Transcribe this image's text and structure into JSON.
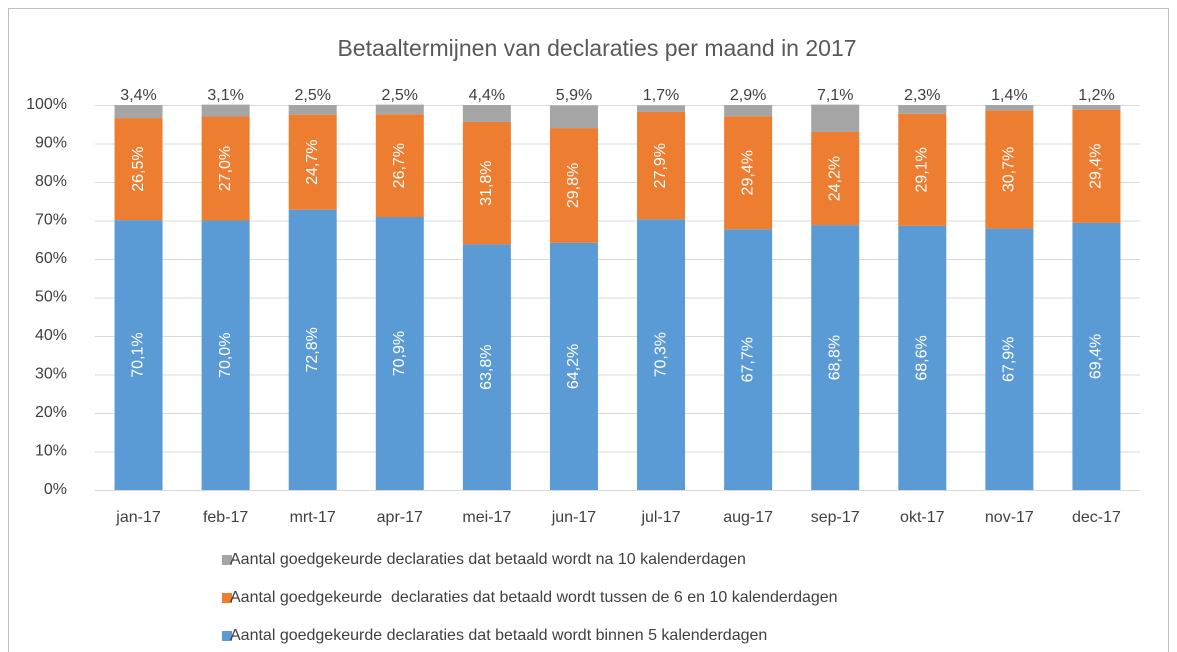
{
  "chart_data": {
    "type": "stacked_bar",
    "title": "Betaaltermijnen van declaraties per maand in 2017",
    "categories": [
      "jan-17",
      "feb-17",
      "mrt-17",
      "apr-17",
      "mei-17",
      "jun-17",
      "jul-17",
      "aug-17",
      "sep-17",
      "okt-17",
      "nov-17",
      "dec-17"
    ],
    "series": [
      {
        "name": "Aantal goedgekeurde declaraties dat betaald wordt binnen 5 kalenderdagen",
        "color": "#5b9bd5",
        "values": [
          70.1,
          70.0,
          72.8,
          70.9,
          63.8,
          64.2,
          70.3,
          67.7,
          68.8,
          68.6,
          67.9,
          69.4
        ],
        "value_labels": [
          "70,1%",
          "70,0%",
          "72,8%",
          "70,9%",
          "63,8%",
          "64,2%",
          "70,3%",
          "67,7%",
          "68,8%",
          "68,6%",
          "67,9%",
          "69,4%"
        ]
      },
      {
        "name": "Aantal goedgekeurde  declaraties dat betaald wordt tussen de 6 en 10 kalenderdagen",
        "color": "#ed7d31",
        "values": [
          26.5,
          27.0,
          24.7,
          26.7,
          31.8,
          29.8,
          27.9,
          29.4,
          24.2,
          29.1,
          30.7,
          29.4
        ],
        "value_labels": [
          "26,5%",
          "27,0%",
          "24,7%",
          "26,7%",
          "31,8%",
          "29,8%",
          "27,9%",
          "29,4%",
          "24,2%",
          "29,1%",
          "30,7%",
          "29,4%"
        ]
      },
      {
        "name": "Aantal goedgekeurde declaraties dat betaald wordt na 10 kalenderdagen",
        "color": "#a5a5a5",
        "values": [
          3.4,
          3.1,
          2.5,
          2.5,
          4.4,
          5.9,
          1.7,
          2.9,
          7.1,
          2.3,
          1.4,
          1.2
        ],
        "value_labels": [
          "3,4%",
          "3,1%",
          "2,5%",
          "2,5%",
          "4,4%",
          "5,9%",
          "1,7%",
          "2,9%",
          "7,1%",
          "2,3%",
          "1,4%",
          "1,2%"
        ]
      }
    ],
    "ylim": [
      0,
      100
    ],
    "yticks": [
      {
        "value": 0,
        "label": "0%"
      },
      {
        "value": 10,
        "label": "10%"
      },
      {
        "value": 20,
        "label": "20%"
      },
      {
        "value": 30,
        "label": "30%"
      },
      {
        "value": 40,
        "label": "40%"
      },
      {
        "value": 50,
        "label": "50%"
      },
      {
        "value": 60,
        "label": "60%"
      },
      {
        "value": 70,
        "label": "70%"
      },
      {
        "value": 80,
        "label": "80%"
      },
      {
        "value": 90,
        "label": "90%"
      },
      {
        "value": 100,
        "label": "100%"
      }
    ],
    "grid": true,
    "legend": "bottom"
  }
}
